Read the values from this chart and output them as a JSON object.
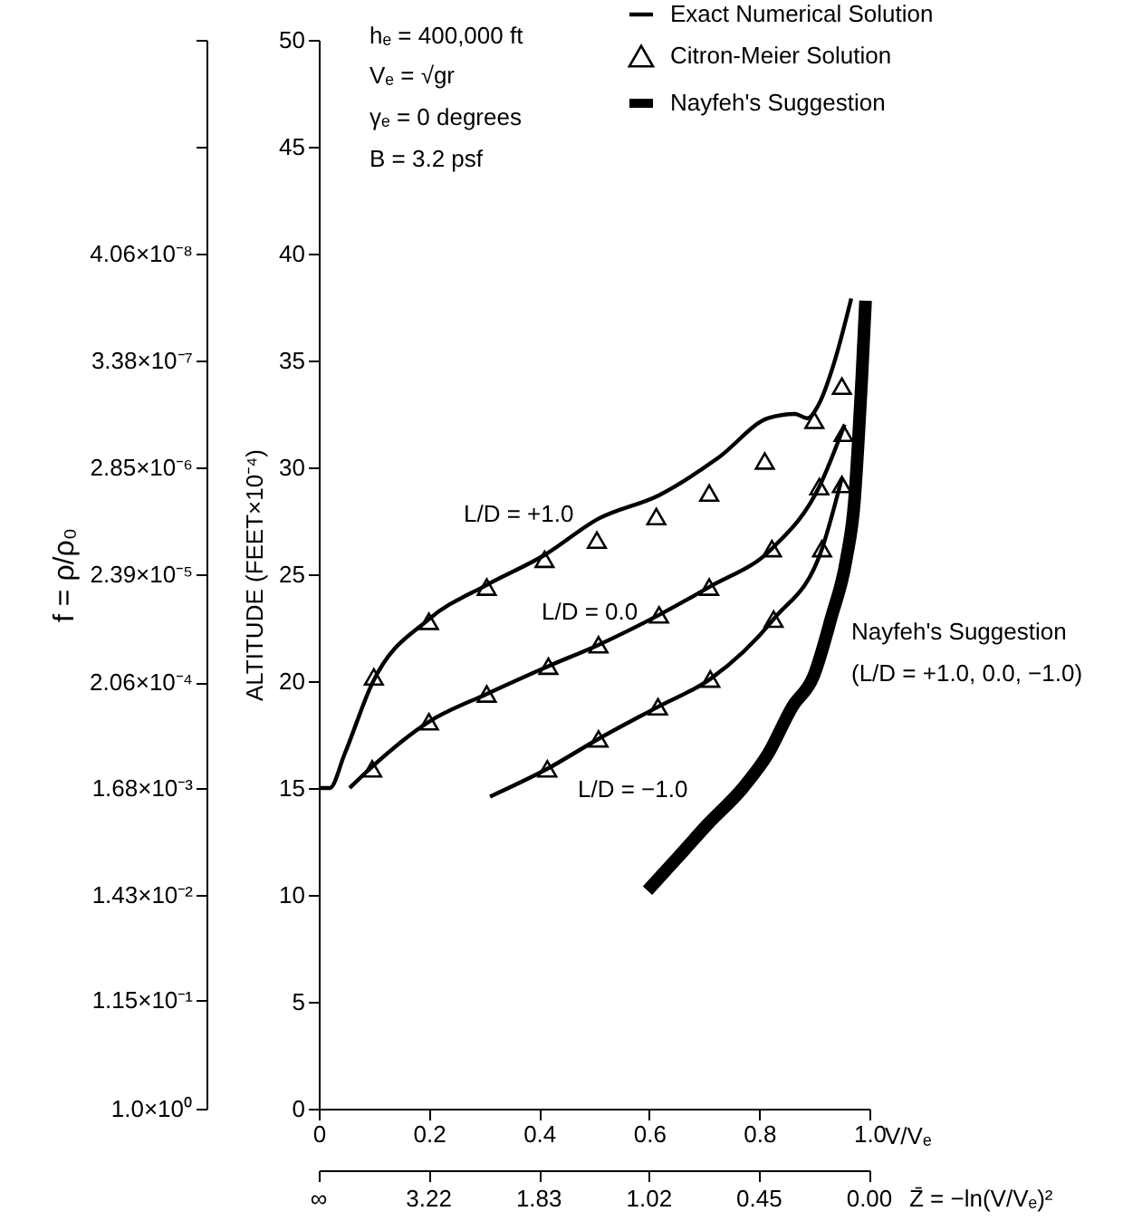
{
  "chart_data": {
    "type": "line",
    "xlabel": "V/Vₑ",
    "ylabel": "ALTITUDE (FEET×10⁻⁴)",
    "y2label": "f = ρ/ρ₀",
    "xlim": [
      0,
      1
    ],
    "xticks": [
      0,
      0.2,
      0.4,
      0.6,
      0.8,
      {
        "value": 1,
        "label": "1.0"
      }
    ],
    "ylim": [
      0,
      50
    ],
    "yticks": [
      0,
      5,
      10,
      15,
      20,
      25,
      30,
      35,
      40,
      45,
      50
    ],
    "log": "y2",
    "y2lim": [
      1,
      5.75e-10
    ],
    "y2ticks": [
      {
        "value": 1,
        "label": "1.0×10⁰"
      },
      {
        "value": 0.115,
        "label": "1.15×10⁻¹"
      },
      {
        "value": 0.0143,
        "label": "1.43×10⁻²"
      },
      {
        "value": 0.00168,
        "label": "1.68×10⁻³"
      },
      {
        "value": 0.000206,
        "label": "2.06×10⁻⁴"
      },
      {
        "value": 2.39e-05,
        "label": "2.39×10⁻⁵"
      },
      {
        "value": 2.85e-06,
        "label": "2.85×10⁻⁶"
      },
      {
        "value": 3.38e-07,
        "label": "3.38×10⁻⁷"
      },
      {
        "value": 4.06e-08,
        "label": "4.06×10⁻⁸"
      },
      {
        "value": 4.8e-09,
        "label": null
      },
      {
        "value": 5.75e-10,
        "label": null
      }
    ],
    "grid": false,
    "legend": "top right",
    "series": [
      {
        "name": "Exact Numerical Solution",
        "color": "#000000",
        "x": [
          0,
          0.02,
          0.047,
          0.097,
          0.2,
          0.305,
          0.41,
          0.508,
          0.618,
          0.728,
          0.816,
          0.865,
          0.887,
          0.909,
          0.936,
          0.967
        ],
        "values": [
          15,
          15,
          16.6,
          19.9,
          22.9,
          24.5,
          25.9,
          27.6,
          28.7,
          30.5,
          32.3,
          32.5,
          32.3,
          33.0,
          34.9,
          37.9
        ]
      },
      {
        "color": "#000000",
        "x": [
          0.056,
          0.097,
          0.2,
          0.305,
          0.417,
          0.508,
          0.618,
          0.709,
          0.823,
          0.909,
          0.955
        ],
        "values": [
          15.0,
          16.0,
          18.1,
          19.4,
          20.7,
          21.7,
          23.1,
          24.4,
          26.2,
          29.1,
          32.0
        ]
      },
      {
        "color": "#000000",
        "x": [
          0.311,
          0.415,
          0.508,
          0.616,
          0.711,
          0.826,
          0.914,
          0.95
        ],
        "values": [
          14.6,
          15.9,
          17.3,
          18.8,
          20.1,
          22.9,
          26.2,
          29.5
        ]
      },
      {
        "name": "Citron-Meier Solution",
        "type": "scatter",
        "marker": "triangle",
        "color": "#000000",
        "x": [
          0.1,
          0.2,
          0.305,
          0.41,
          0.505,
          0.613,
          0.709,
          0.81,
          0.9,
          0.95
        ],
        "values": [
          20.2,
          22.8,
          24.4,
          25.7,
          26.6,
          27.7,
          28.8,
          30.3,
          32.2,
          33.8
        ]
      },
      {
        "type": "scatter",
        "marker": "triangle",
        "color": "#000000",
        "x": [
          0.097,
          0.2,
          0.305,
          0.417,
          0.508,
          0.618,
          0.709,
          0.823,
          0.909,
          0.953
        ],
        "values": [
          15.9,
          18.1,
          19.4,
          20.7,
          21.7,
          23.1,
          24.4,
          26.2,
          29.1,
          31.6
        ]
      },
      {
        "type": "scatter",
        "marker": "triangle",
        "color": "#000000",
        "x": [
          0.415,
          0.508,
          0.616,
          0.711,
          0.826,
          0.914,
          0.95
        ],
        "values": [
          15.9,
          17.3,
          18.8,
          20.1,
          22.9,
          26.2,
          29.2
        ]
      },
      {
        "name": "Nayfeh's Suggestion",
        "color": "#000000",
        "x": [
          0.597,
          0.65,
          0.706,
          0.77,
          0.816,
          0.86,
          0.898,
          0.931,
          0.958,
          0.973,
          0.98,
          0.986,
          0.993
        ],
        "values": [
          10.2,
          11.7,
          13.3,
          15,
          16.6,
          18.8,
          20.2,
          23.0,
          25.7,
          28.5,
          31.3,
          34.1,
          37.8
        ]
      }
    ],
    "annotations": [
      "hₑ = 400,000 ft",
      "Vₑ = √gr",
      "γₑ = 0 degrees",
      "B = 3.2 psf",
      "Nayfeh's Suggestion",
      "(L/D = +1.0, 0.0, −1.0)",
      "L/D = +1.0",
      "L/D = 0.0",
      "L/D = −1.0",
      "∞",
      "3.22",
      "1.83",
      "1.02",
      "0.45",
      "0.00",
      "Z̄ = −ln(V/Vₑ)²"
    ]
  }
}
